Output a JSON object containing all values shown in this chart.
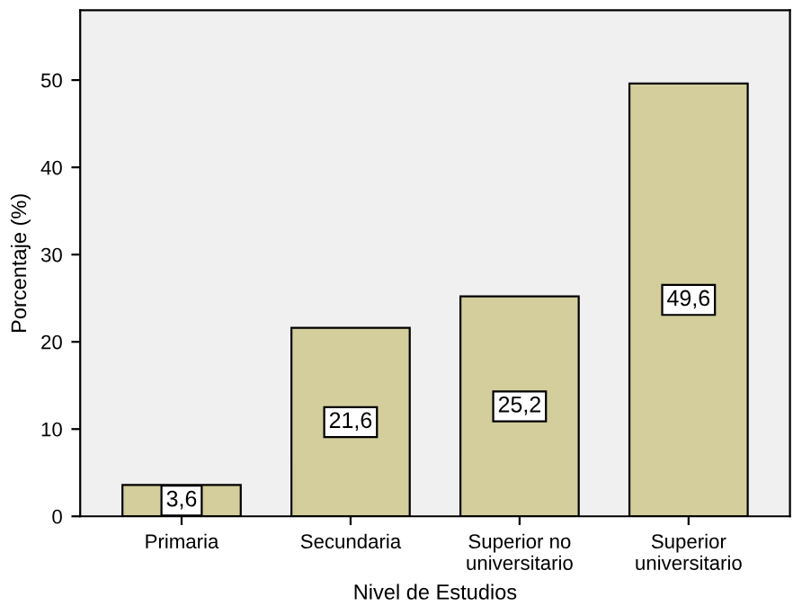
{
  "chart_data": {
    "type": "bar",
    "xlabel": "Nivel de Estudios",
    "ylabel": "Porcentaje (%)",
    "categories": [
      "Primaria",
      "Secundaria",
      "Superior no\nuniversitario",
      "Superior\nuniversitario"
    ],
    "values": [
      3.6,
      21.6,
      25.2,
      49.6
    ],
    "value_labels": [
      "3,6",
      "21,6",
      "25,2",
      "49,6"
    ],
    "color": "#d3ce9c",
    "ylim": [
      0,
      58
    ],
    "yticks": [
      0,
      10,
      20,
      30,
      40,
      50
    ],
    "grid": false,
    "legend": false
  }
}
